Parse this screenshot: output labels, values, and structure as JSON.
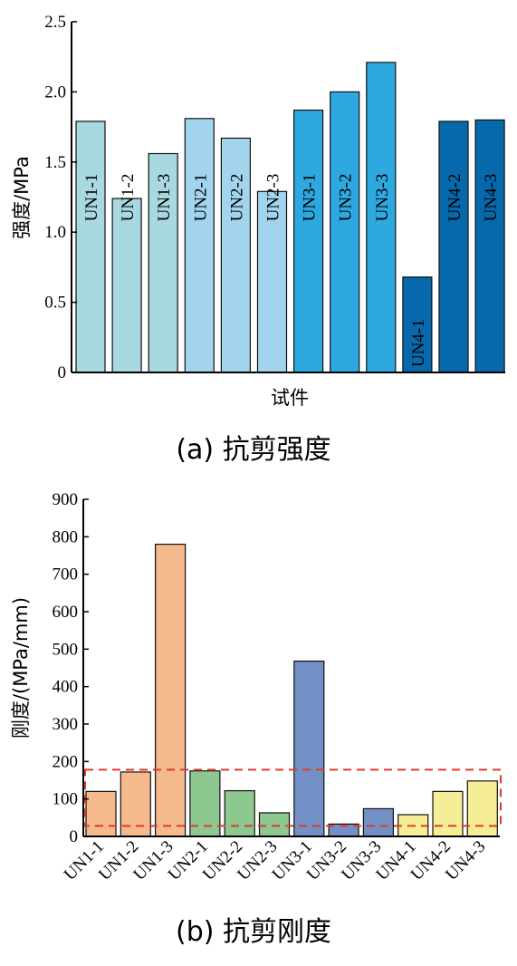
{
  "chart_data": [
    {
      "type": "bar",
      "caption": "(a) 抗剪强度",
      "xlabel": "试件",
      "ylabel": "强度/MPa",
      "ylim": [
        0,
        2.5
      ],
      "yticks": [
        "0",
        "0.5",
        "1.0",
        "1.5",
        "2.0",
        "2.5"
      ],
      "categories": [
        "UN1-1",
        "UN1-2",
        "UN1-3",
        "UN2-1",
        "UN2-2",
        "UN2-3",
        "UN3-1",
        "UN3-2",
        "UN3-3",
        "UN4-1",
        "UN4-2",
        "UN4-3"
      ],
      "values": [
        1.79,
        1.24,
        1.56,
        1.81,
        1.67,
        1.29,
        1.87,
        2.0,
        2.21,
        0.68,
        1.79,
        1.8
      ],
      "colors": [
        "#a8d8e0",
        "#a8d8e0",
        "#a8d8e0",
        "#a3d4ee",
        "#a3d4ee",
        "#a3d4ee",
        "#2ea9df",
        "#2ea9df",
        "#2ea9df",
        "#0868ac",
        "#0868ac",
        "#0868ac"
      ]
    },
    {
      "type": "bar",
      "caption": "(b) 抗剪刚度",
      "xlabel": "",
      "ylabel": "刚度/(MPa/mm)",
      "ylim": [
        0,
        900
      ],
      "yticks": [
        "0",
        "100",
        "200",
        "300",
        "400",
        "500",
        "600",
        "700",
        "800",
        "900"
      ],
      "categories": [
        "UN1-1",
        "UN1-2",
        "UN1-3",
        "UN2-1",
        "UN2-2",
        "UN2-3",
        "UN3-1",
        "UN3-2",
        "UN3-3",
        "UN4-1",
        "UN4-2",
        "UN4-3"
      ],
      "values": [
        120,
        172,
        780,
        175,
        122,
        63,
        468,
        33,
        74,
        58,
        120,
        148
      ],
      "colors": [
        "#f5b98e",
        "#f5b98e",
        "#f5b98e",
        "#8cc890",
        "#8cc890",
        "#8cc890",
        "#7390c6",
        "#7390c6",
        "#7390c6",
        "#f5ee96",
        "#f5ee96",
        "#f5ee96"
      ],
      "highlight_band": [
        28,
        178
      ],
      "highlight_color": "#e03a2a"
    }
  ]
}
